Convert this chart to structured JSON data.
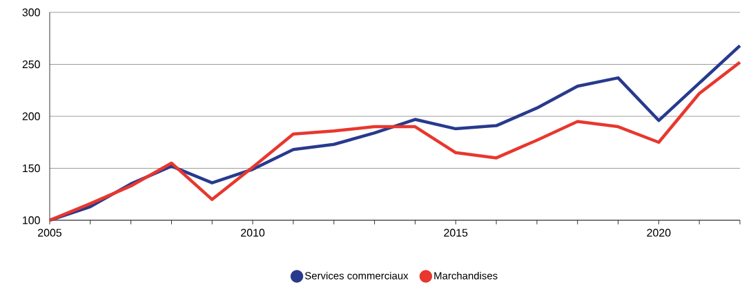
{
  "chart_data": {
    "type": "line",
    "x": [
      2005,
      2006,
      2007,
      2008,
      2009,
      2010,
      2011,
      2012,
      2013,
      2014,
      2015,
      2016,
      2017,
      2018,
      2019,
      2020,
      2021,
      2022
    ],
    "series": [
      {
        "name": "Services commerciaux",
        "color": "#283a8e",
        "values": [
          100,
          113,
          135,
          152,
          136,
          149,
          168,
          173,
          184,
          197,
          188,
          191,
          208,
          229,
          237,
          196,
          232,
          268
        ]
      },
      {
        "name": "Marchandises",
        "color": "#e8372e",
        "values": [
          100,
          116,
          133,
          155,
          120,
          151,
          183,
          186,
          190,
          190,
          165,
          160,
          177,
          195,
          190,
          175,
          222,
          252
        ]
      }
    ],
    "xlim": [
      2005,
      2022
    ],
    "ylim": [
      100,
      300
    ],
    "xticks": [
      2005,
      {
        "value": 2006,
        "label": null
      },
      {
        "value": 2007,
        "label": null
      },
      {
        "value": 2008,
        "label": null
      },
      {
        "value": 2009,
        "label": null
      },
      2010,
      {
        "value": 2011,
        "label": null
      },
      {
        "value": 2012,
        "label": null
      },
      {
        "value": 2013,
        "label": null
      },
      {
        "value": 2014,
        "label": null
      },
      2015,
      {
        "value": 2016,
        "label": null
      },
      {
        "value": 2017,
        "label": null
      },
      {
        "value": 2018,
        "label": null
      },
      {
        "value": 2019,
        "label": null
      },
      2020,
      {
        "value": 2021,
        "label": null
      },
      {
        "value": 2022,
        "label": null
      }
    ],
    "yticks": [
      100,
      150,
      200,
      250,
      300
    ],
    "grid": "y",
    "legend": "bottom",
    "line_style": "solid",
    "marker": "none"
  }
}
